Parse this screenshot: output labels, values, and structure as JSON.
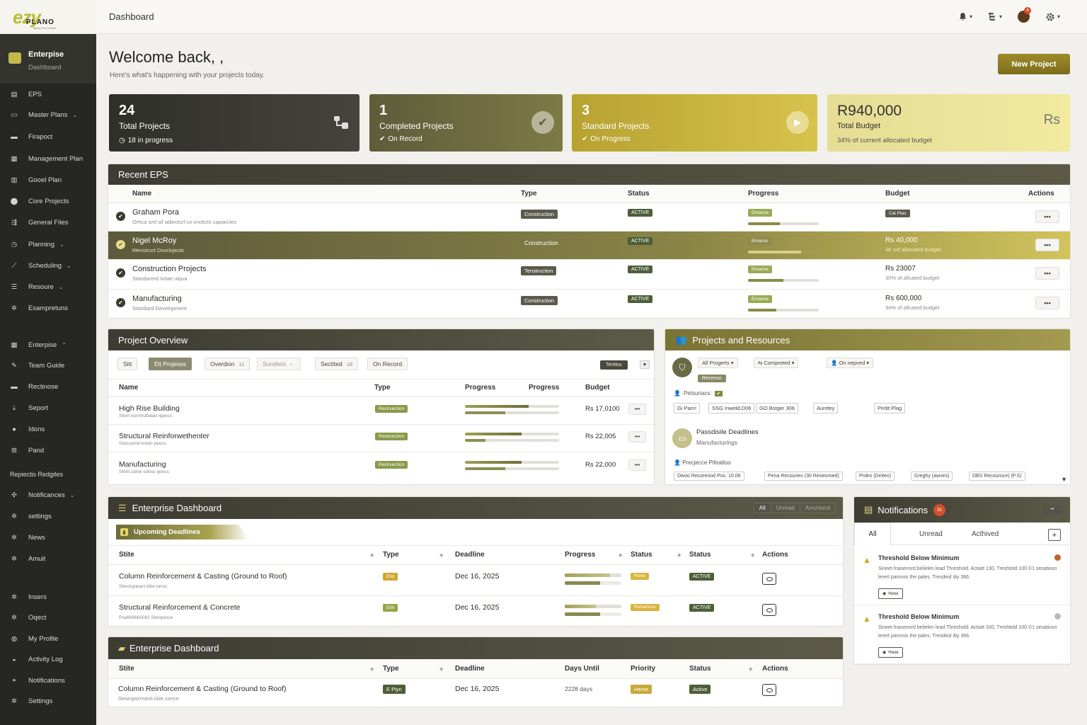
{
  "brand": {
    "logo": "ezy",
    "logo_sub": "PLANO",
    "tagline": "Taking You Further"
  },
  "topbar": {
    "title": "Dashboard",
    "notif_count": "4",
    "icons": [
      "bell-icon",
      "hierarchy-icon",
      "avatar",
      "gear-icon"
    ]
  },
  "sidebar": {
    "enterprise": {
      "title": "Enterpise",
      "subtitle": "Dashboard"
    },
    "items": [
      {
        "label": "EPS",
        "icon": "list-icon"
      },
      {
        "label": "Master Plans",
        "icon": "plans-icon",
        "caret": "⌄"
      },
      {
        "label": "Firapoct",
        "icon": "folder-icon"
      },
      {
        "label": "Management Plan",
        "icon": "doc-icon"
      },
      {
        "label": "Gooel Plan",
        "icon": "stack-icon"
      },
      {
        "label": "Core Projects",
        "icon": "pin-icon"
      },
      {
        "label": "General Files",
        "icon": "files-icon"
      },
      {
        "label": "Planning",
        "icon": "clock-icon",
        "caret": "⌄"
      },
      {
        "label": "Scheduling",
        "icon": "schedule-icon",
        "caret": "⌄"
      },
      {
        "label": "Resoure",
        "icon": "menu-icon",
        "caret": "⌄"
      },
      {
        "label": "Esampretuns",
        "icon": "gear-icon"
      }
    ],
    "items2": [
      {
        "label": "Enterpise",
        "icon": "grid-icon",
        "caret": "⌃"
      },
      {
        "label": "Team Guide",
        "icon": "pencil-icon"
      },
      {
        "label": "Rectinose",
        "icon": "folder-icon"
      },
      {
        "label": "Seport",
        "icon": "download-icon"
      },
      {
        "label": "Idons",
        "icon": "user-icon"
      },
      {
        "label": "Pand",
        "icon": "org-icon"
      }
    ],
    "section_label": "Repiectis Redgites",
    "items3": [
      {
        "label": "Notificances",
        "icon": "puzzle-icon",
        "caret": "⌄"
      },
      {
        "label": "settings",
        "icon": "gear-icon"
      },
      {
        "label": "News",
        "icon": "gear-icon"
      },
      {
        "label": "Amuit",
        "icon": "gear-icon"
      }
    ],
    "items4": [
      {
        "label": "Insers",
        "icon": "gear-icon"
      },
      {
        "label": "Oqect",
        "icon": "gear-icon"
      },
      {
        "label": "My Profile",
        "icon": "globe-icon"
      },
      {
        "label": "Activity Log",
        "icon": "lock-icon"
      },
      {
        "label": "Notifications",
        "icon": "bell-icon"
      },
      {
        "label": "Settings",
        "icon": "gear-icon"
      }
    ]
  },
  "welcome": {
    "title": "Welcome back, ,",
    "subtitle": "Here's what's happening with your projects today.",
    "new_project": "New Project"
  },
  "stats": [
    {
      "num": "24",
      "label": "Total Projects",
      "sub": "18 in progress",
      "icon": "hierarchy-icon"
    },
    {
      "num": "1",
      "label": "Completed Projects",
      "sub": "On Record",
      "icon": "check-circle-icon"
    },
    {
      "num": "3",
      "label": "Standard Projects",
      "sub": "On Progress",
      "icon": "play-icon"
    },
    {
      "num": "R940,000",
      "label": "Total Budget",
      "sub": "34% of current allocated budget",
      "icon_text": "Rs"
    }
  ],
  "recent_eps": {
    "title": "Recent EPS",
    "headers": [
      "Name",
      "Type",
      "Status",
      "Progress",
      "Budget",
      "Actions"
    ],
    "rows": [
      {
        "name": "Graham Pora",
        "desc": "Orhca sml sif adiecturl co vncticts capiarcles",
        "type": "Construction",
        "status": "Active",
        "progress_label": "Emacne",
        "progress": 0.45,
        "budget": "Cal Plao",
        "budget_sub": ""
      },
      {
        "name": "Nigel McRoy",
        "desc": "Menstruct Dsvclojects",
        "type": "Construction",
        "status": "Active",
        "progress_label": "Emacns",
        "progress": 0.75,
        "budget": "Rs 40,000",
        "budget_sub": "3E sof allocated budget"
      },
      {
        "name": "Construction Projects",
        "desc": "Standarerd Ivitae ulqua",
        "type": "Tenstruction",
        "status": "Active",
        "progress_label": "Emacne",
        "progress": 0.5,
        "budget": "Rs 23007",
        "budget_sub": "30% of allcated budget"
      },
      {
        "name": "Manufacturing",
        "desc": "Standard Development",
        "type": "Construction",
        "status": "Active",
        "progress_label": "Emacne",
        "progress": 0.4,
        "budget": "Rs 600,000",
        "budget_sub": "34% of allcated budget"
      }
    ]
  },
  "project_overview": {
    "title": "Project Overview",
    "filters": [
      "Sitt",
      "Elt Projesss",
      "Overdion",
      "Sundiets",
      "Sectited",
      "On Record"
    ],
    "filter_counts": [
      "",
      "",
      "11",
      "",
      "18",
      ""
    ],
    "tag": "Tentinu",
    "headers": [
      "Name",
      "Type",
      "Progress",
      "Progress",
      "Budget"
    ],
    "rows": [
      {
        "name": "High Rise Building",
        "desc": "Sterit eurrnrublaad rppecs",
        "type": "Restrvection",
        "p1": 0.68,
        "p2": 0.43,
        "budget": "Rs 17,0100"
      },
      {
        "name": "Structural Reinforwethenter",
        "desc": "Stancarnd eotao ppecs",
        "type": "Restrvection",
        "p1": 0.6,
        "p2": 0.22,
        "budget": "Rs 22,005"
      },
      {
        "name": "Manufacturing",
        "desc": "Sterit caine sobso ppecs",
        "type": "Restrvection",
        "p1": 0.6,
        "p2": 0.43,
        "budget": "Rs 22,000"
      }
    ]
  },
  "projects_resources": {
    "title": "Projects and Resources",
    "selects": [
      "All Progerts",
      "Compreted",
      "On nepved"
    ],
    "tag": "Recenso",
    "resources_label": "Petsuriacs:",
    "chips1": [
      "Gi Pam!",
      "SSG Inweld,D06",
      "GO Bstger 306",
      "Aunttey",
      "Pirdit Plag"
    ],
    "deadline_title": "Passdisile Deadlines",
    "deadline_sub": "Manufacturings",
    "allocation_label": "Precjecce Pifeatloo",
    "chips2": [
      "Dwoo Recoreriod Pos. 10.06",
      "Pena Recouries (30 Reoeoroed)",
      "Prdes (Deiteo)",
      "Greghy (awves)",
      "DBS Recouroce) (P.S)"
    ]
  },
  "enterprise_dashboard": {
    "title": "Enterprise Dashboard",
    "tabs": [
      "All",
      "Unread",
      "Amchiucd"
    ],
    "upcoming": "Upcoming Deadlines",
    "headers": [
      "Stite",
      "Type",
      "Deadline",
      "Progress",
      "Status",
      "Status",
      "Actions"
    ],
    "rows": [
      {
        "name": "Column Reinforcement & Casting (Ground to Roof)",
        "desc": "Stieotspieani.tiibe tanss",
        "type": "Etin",
        "deadline": "Dec 16, 2025",
        "p": 0.8,
        "s1": "Reme",
        "s2": "Active"
      },
      {
        "name": "Structural Reinforcement & Concrete",
        "desc": "Poafi69660081 Slieoproce",
        "type": "Etin",
        "deadline": "Dec 16, 2025",
        "p": 0.55,
        "s1": "Romamnus",
        "s2": "Active"
      }
    ]
  },
  "enterprise_dashboard2": {
    "title": "Enterprise Dashboard",
    "headers": [
      "Stite",
      "Type",
      "Deadline",
      "Days Until",
      "Priority",
      "Status",
      "Actions"
    ],
    "rows": [
      {
        "name": "Column Reinforcement & Casting (Ground to Roof)",
        "desc": "Searnpsrmanti.tiiiie conce",
        "type": "E Piyn",
        "deadline": "Dec 16, 2025",
        "days": "2228 days",
        "priority": "Heme",
        "status": "Active"
      }
    ]
  },
  "notifications": {
    "title": "Notifications",
    "count": "2c",
    "tabs": [
      "All",
      "Unread",
      "Acthived"
    ],
    "items": [
      {
        "title": "Threshold Below Minimum",
        "body": "Sineet fnasennrd belielen lead Threshold. Actiatt 130, Treshtold 100 ©1 sesatiosn lerert pannnis the pales. Tresdeid diy 366.",
        "btn": "Heoe",
        "dot": "#c0642a"
      },
      {
        "title": "Threshold Below Minimum",
        "body": "Sineet fnasennrd belielen lead Threshold. Actiatt 330, Treshtold 100 ©1 sesatiosn lerert pannnis the pales. Tresdeid diy 366.",
        "btn": "Heoe",
        "dot": "#bbbbbb"
      }
    ]
  },
  "colors": {
    "accent": "#9d8a2a",
    "dark": "#262622",
    "olive": "#8c8a47"
  }
}
